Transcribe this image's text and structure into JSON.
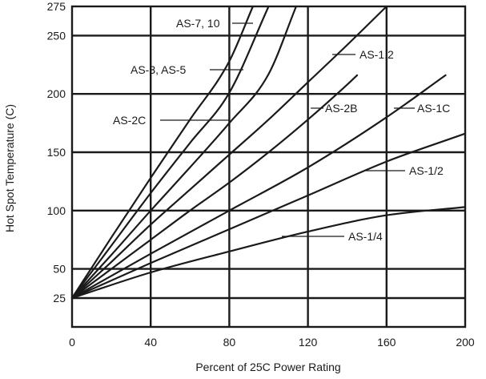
{
  "chart_data": {
    "type": "line",
    "xlabel": "Percent of 25C Power Rating",
    "ylabel": "Hot Spot Temperature (C)",
    "xlim": [
      0,
      200
    ],
    "ylim": [
      0,
      275
    ],
    "x_ticks": [
      0,
      40,
      80,
      120,
      160,
      200
    ],
    "y_ticks": [
      25,
      50,
      100,
      150,
      200,
      250,
      275
    ],
    "x_tick_labels": [
      "0",
      "40",
      "80",
      "120",
      "160",
      "200"
    ],
    "y_tick_labels": [
      "25",
      "50",
      "100",
      "150",
      "200",
      "250",
      "275"
    ],
    "grid": true,
    "series": [
      {
        "name": "AS-7, 10",
        "x": [
          0,
          20,
          40,
          60,
          80,
          92
        ],
        "y": [
          25,
          77,
          128,
          178,
          228,
          275
        ]
      },
      {
        "name": "AS-3, AS-5",
        "x": [
          0,
          20,
          40,
          60,
          80,
          100
        ],
        "y": [
          25,
          70,
          115,
          158,
          201,
          275
        ]
      },
      {
        "name": "AS-2C",
        "x": [
          0,
          20,
          40,
          60,
          80,
          100,
          114
        ],
        "y": [
          25,
          62,
          100,
          137,
          175,
          217,
          275
        ]
      },
      {
        "name": "AS-1,2",
        "x": [
          0,
          20,
          40,
          60,
          80,
          100,
          120,
          140,
          160
        ],
        "y": [
          25,
          56,
          88,
          118,
          148,
          178,
          210,
          242,
          275
        ]
      },
      {
        "name": "AS-2B",
        "x": [
          0,
          20,
          40,
          60,
          80,
          100,
          120,
          140,
          145
        ],
        "y": [
          25,
          50,
          75,
          100,
          124,
          150,
          178,
          208,
          216
        ]
      },
      {
        "name": "AS-1C",
        "x": [
          0,
          40,
          80,
          120,
          160,
          190
        ],
        "y": [
          25,
          63,
          100,
          137,
          180,
          216
        ]
      },
      {
        "name": "AS-1/2",
        "x": [
          0,
          40,
          80,
          120,
          160,
          200
        ],
        "y": [
          25,
          55,
          84,
          113,
          142,
          166
        ]
      },
      {
        "name": "AS-1/4",
        "x": [
          0,
          40,
          80,
          120,
          160,
          200
        ],
        "y": [
          25,
          47,
          65,
          82,
          96,
          103
        ]
      }
    ],
    "annotations": [
      {
        "text": "AS-7, 10",
        "series": 0
      },
      {
        "text": "AS-3, AS-5",
        "series": 1
      },
      {
        "text": "AS-2C",
        "series": 2
      },
      {
        "text": "AS-1,2",
        "series": 3
      },
      {
        "text": "AS-2B",
        "series": 4
      },
      {
        "text": "AS-1C",
        "series": 5
      },
      {
        "text": "AS-1/2",
        "series": 6
      },
      {
        "text": "AS-1/4",
        "series": 7
      }
    ]
  }
}
